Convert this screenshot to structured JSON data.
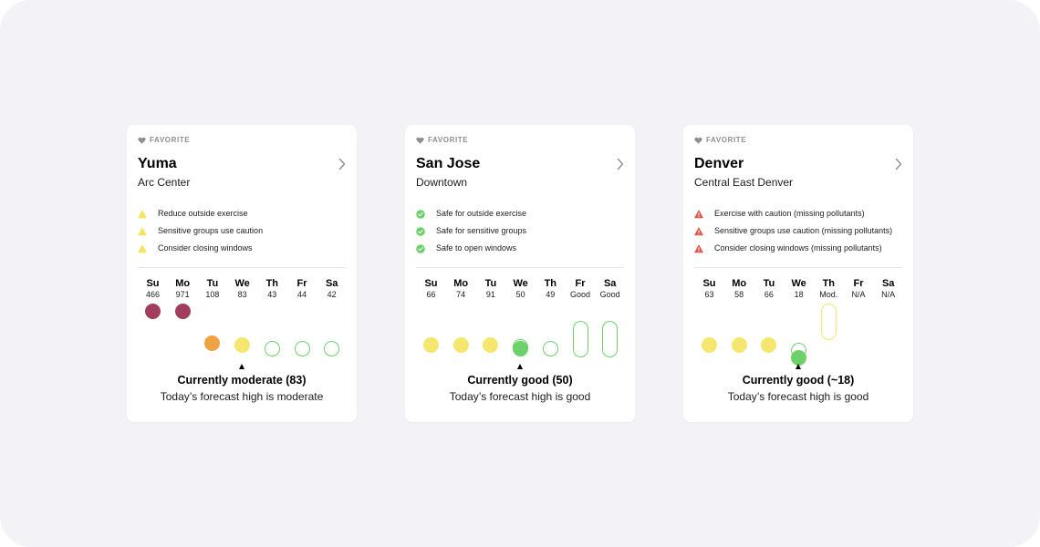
{
  "colors": {
    "good": "#6dd16a",
    "moderate": "#f5e66d",
    "unhealthy_sensitive": "#eea241",
    "very_unhealthy": "#a23d5e",
    "caution_yellow": "#f8e45c",
    "warning_red": "#e2584a",
    "check_green": "#6dd16a"
  },
  "cards": [
    {
      "favorite_label": "FAVORITE",
      "city": "Yuma",
      "station": "Arc Center",
      "recommendations": [
        {
          "icon": "caution-triangle-icon",
          "label": "Reduce outside exercise"
        },
        {
          "icon": "caution-triangle-icon",
          "label": "Sensitive groups use caution"
        },
        {
          "icon": "caution-triangle-icon",
          "label": "Consider closing windows"
        }
      ],
      "days": [
        {
          "name": "Su",
          "value": "466",
          "level": 5,
          "color": "#a23d5e",
          "style": "filled"
        },
        {
          "name": "Mo",
          "value": "971",
          "level": 5,
          "color": "#a23d5e",
          "style": "filled"
        },
        {
          "name": "Tu",
          "value": "108",
          "level": 2,
          "color": "#eea241",
          "style": "filled"
        },
        {
          "name": "We",
          "value": "83",
          "level": 1,
          "color": "#f5e66d",
          "style": "filled"
        },
        {
          "name": "Th",
          "value": "43",
          "level": 0,
          "color": "#6dd16a",
          "style": "outline"
        },
        {
          "name": "Fr",
          "value": "44",
          "level": 0,
          "color": "#6dd16a",
          "style": "outline"
        },
        {
          "name": "Sa",
          "value": "42",
          "level": 0,
          "color": "#6dd16a",
          "style": "outline"
        }
      ],
      "current_day_index": 3,
      "current_text": "Currently moderate (83)",
      "forecast_text": "Today’s forecast high is moderate"
    },
    {
      "favorite_label": "FAVORITE",
      "city": "San Jose",
      "station": "Downtown",
      "recommendations": [
        {
          "icon": "check-circle-icon",
          "label": "Safe for outside exercise"
        },
        {
          "icon": "check-circle-icon",
          "label": "Safe for sensitive groups"
        },
        {
          "icon": "check-circle-icon",
          "label": "Safe to open windows"
        }
      ],
      "days": [
        {
          "name": "Su",
          "value": "66",
          "level": 1,
          "color": "#f5e66d",
          "style": "filled"
        },
        {
          "name": "Mo",
          "value": "74",
          "level": 1,
          "color": "#f5e66d",
          "style": "filled"
        },
        {
          "name": "Tu",
          "value": "91",
          "level": 1,
          "color": "#f5e66d",
          "style": "filled"
        },
        {
          "name": "We",
          "value": "50",
          "level": 0,
          "color": "#6dd16a",
          "style": "filled-stacked"
        },
        {
          "name": "Th",
          "value": "49",
          "level": 0,
          "color": "#6dd16a",
          "style": "outline"
        },
        {
          "name": "Fr",
          "value": "Good",
          "level": 0,
          "color": "#6dd16a",
          "style": "outline-range"
        },
        {
          "name": "Sa",
          "value": "Good",
          "level": 0,
          "color": "#6dd16a",
          "style": "outline-range"
        }
      ],
      "current_day_index": 3,
      "current_text": "Currently good (50)",
      "forecast_text": "Today’s forecast high is good"
    },
    {
      "favorite_label": "FAVORITE",
      "city": "Denver",
      "station": "Central East Denver",
      "recommendations": [
        {
          "icon": "warning-triangle-icon",
          "label": "Exercise with caution (missing pollutants)"
        },
        {
          "icon": "warning-triangle-icon",
          "label": "Sensitive groups use caution (missing pollutants)"
        },
        {
          "icon": "warning-triangle-icon",
          "label": "Consider closing windows (missing pollutants)"
        }
      ],
      "days": [
        {
          "name": "Su",
          "value": "63",
          "level": 1,
          "color": "#f5e66d",
          "style": "filled"
        },
        {
          "name": "Mo",
          "value": "58",
          "level": 1,
          "color": "#f5e66d",
          "style": "filled"
        },
        {
          "name": "Tu",
          "value": "66",
          "level": 1,
          "color": "#f5e66d",
          "style": "filled"
        },
        {
          "name": "We",
          "value": "18",
          "level": 0,
          "color": "#6dd16a",
          "style": "filled-range"
        },
        {
          "name": "Th",
          "value": "Mod.",
          "level": 1,
          "color": "#f5e66d",
          "style": "outline-range-high"
        },
        {
          "name": "Fr",
          "value": "N/A",
          "level": null,
          "color": "",
          "style": "none"
        },
        {
          "name": "Sa",
          "value": "N/A",
          "level": null,
          "color": "",
          "style": "none"
        }
      ],
      "current_day_index": 3,
      "current_text": "Currently good (~18)",
      "forecast_text": "Today’s forecast high is good"
    }
  ]
}
